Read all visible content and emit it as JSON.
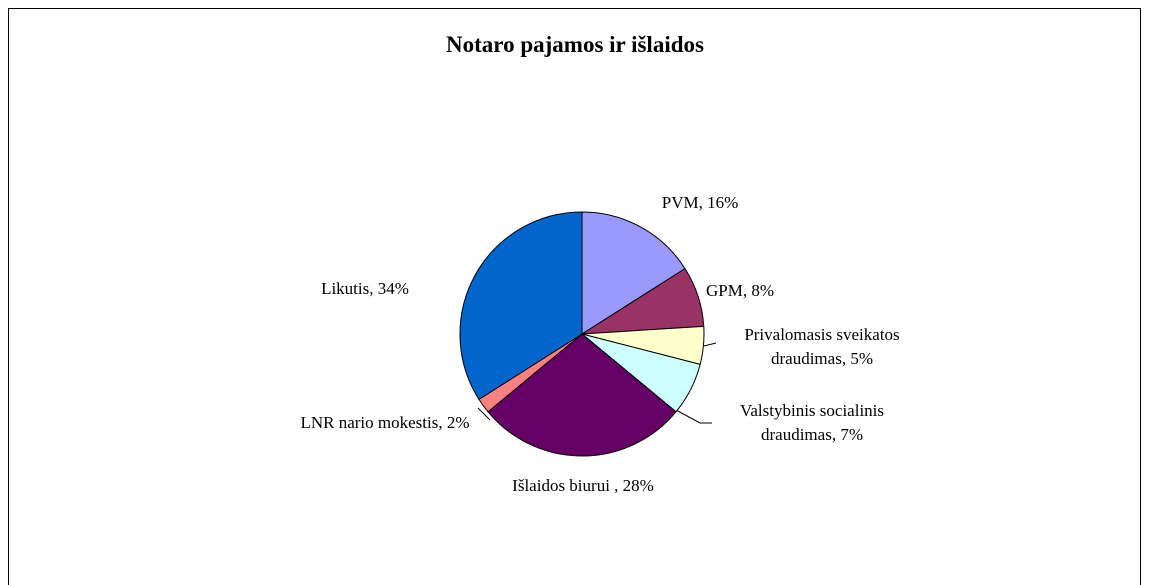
{
  "chart_data": {
    "type": "pie",
    "title": "Notaro pajamos ir išlaidos",
    "values": [
      16,
      8,
      5,
      7,
      28,
      2,
      34
    ],
    "value_labels": [
      "PVM, 16%",
      "GPM, 8%",
      "Privalomasis sveikatos draudimas, 5%",
      "Valstybinis socialinis draudimas, 7%",
      "Išlaidos biurui , 28%",
      "LNR nario mokestis, 2%",
      "Likutis, 34%"
    ],
    "colors": [
      "#9999ff",
      "#993366",
      "#ffffcc",
      "#ccffff",
      "#660066",
      "#ff8080",
      "#0066cc"
    ]
  }
}
